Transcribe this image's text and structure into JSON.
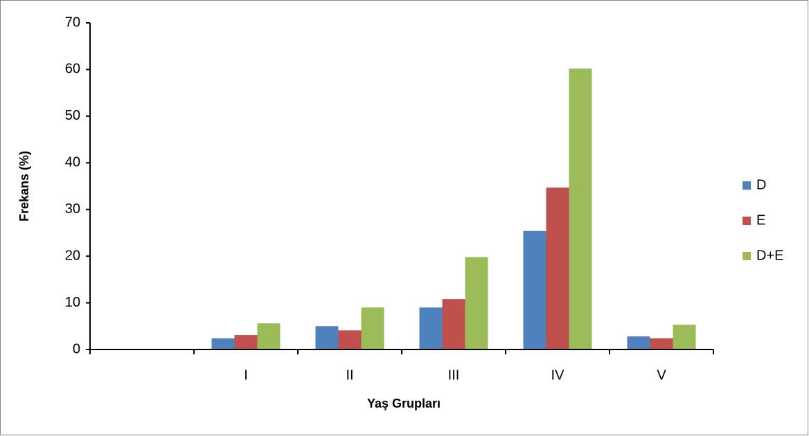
{
  "chart_data": {
    "type": "bar",
    "x_label": "Yaş Grupları",
    "y_label": "Frekans (%)",
    "categories": [
      null,
      "I",
      "II",
      "III",
      "IV",
      "V"
    ],
    "series": [
      {
        "name": "D",
        "color": "#4f81bd",
        "values": [
          null,
          2.4,
          5.0,
          9.0,
          25.4,
          2.8
        ]
      },
      {
        "name": "E",
        "color": "#c0504d",
        "values": [
          null,
          3.1,
          4.1,
          10.8,
          34.7,
          2.4
        ]
      },
      {
        "name": "D+E",
        "color": "#9bbb59",
        "values": [
          null,
          5.6,
          9.0,
          19.8,
          60.2,
          5.3
        ]
      }
    ],
    "ylim": [
      0,
      70
    ],
    "yticks": [
      0,
      10,
      20,
      30,
      40,
      50,
      60,
      70
    ],
    "grid": false,
    "legend": "right"
  }
}
